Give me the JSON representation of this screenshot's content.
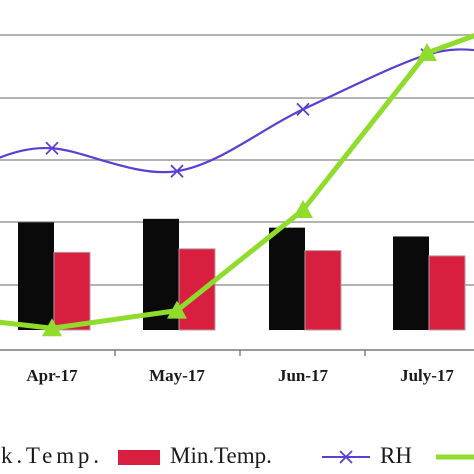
{
  "chart_data": {
    "type": "bar",
    "categories": [
      "Apr-17",
      "May-17",
      "Jun-17",
      "July-17"
    ],
    "series": [
      {
        "name": "Max.Temp.",
        "kind": "bar",
        "color": "#0a0a0a",
        "values": [
          30.5,
          31.5,
          29.0,
          26.5
        ]
      },
      {
        "name": "Min.Temp.",
        "kind": "bar",
        "color": "#d91f3f",
        "values": [
          22.0,
          23.0,
          22.5,
          21.0
        ]
      },
      {
        "name": "RH",
        "kind": "line",
        "color": "#5b3fd1",
        "marker": "x-icon",
        "values": [
          51.5,
          45.0,
          62.5,
          78.0
        ]
      },
      {
        "name": "",
        "kind": "line",
        "color": "#8fdc2c",
        "marker": "triangle-icon",
        "values": [
          0.5,
          5.5,
          34.0,
          78.5
        ]
      }
    ],
    "ylim": [
      0,
      85
    ],
    "grid": true,
    "legend": "bottom",
    "xlabel": "",
    "ylabel": "",
    "title": ""
  }
}
